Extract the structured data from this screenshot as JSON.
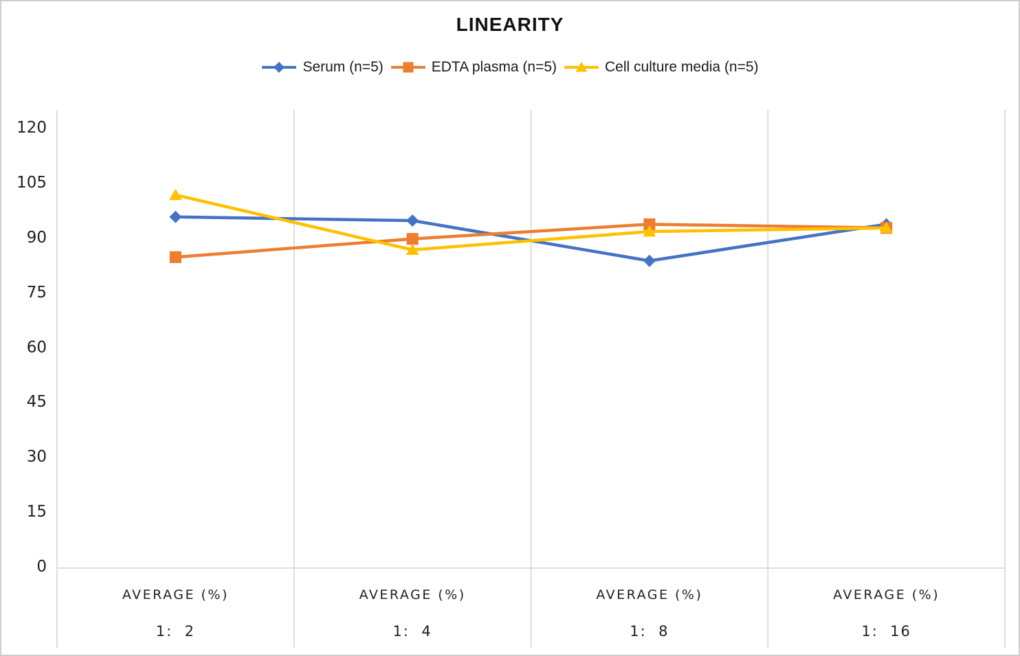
{
  "chart_data": {
    "type": "line",
    "title": "LINEARITY",
    "x_header": "AVERAGE (%)",
    "categories": [
      "1:  2",
      "1:  4",
      "1:  8",
      "1:  16"
    ],
    "series": [
      {
        "name": "Serum (n=5)",
        "marker": "diamond",
        "color": "#4472C4",
        "values": [
          96,
          95,
          84,
          94
        ]
      },
      {
        "name": "EDTA plasma (n=5)",
        "marker": "square",
        "color": "#ED7D31",
        "values": [
          85,
          90,
          94,
          93
        ]
      },
      {
        "name": "Cell culture media (n=5)",
        "marker": "triangle",
        "color": "#FFC000",
        "values": [
          102,
          87,
          92,
          93
        ]
      }
    ],
    "y_axis": {
      "min": 0,
      "max": 120,
      "step": 15
    },
    "ylim": [
      0,
      120
    ],
    "legend_position": "top",
    "grid": "vertical-category-dividers-only",
    "grid_color": "#D9D9D9",
    "text_color": "#1f1f1f",
    "background_color": "#ffffff"
  }
}
